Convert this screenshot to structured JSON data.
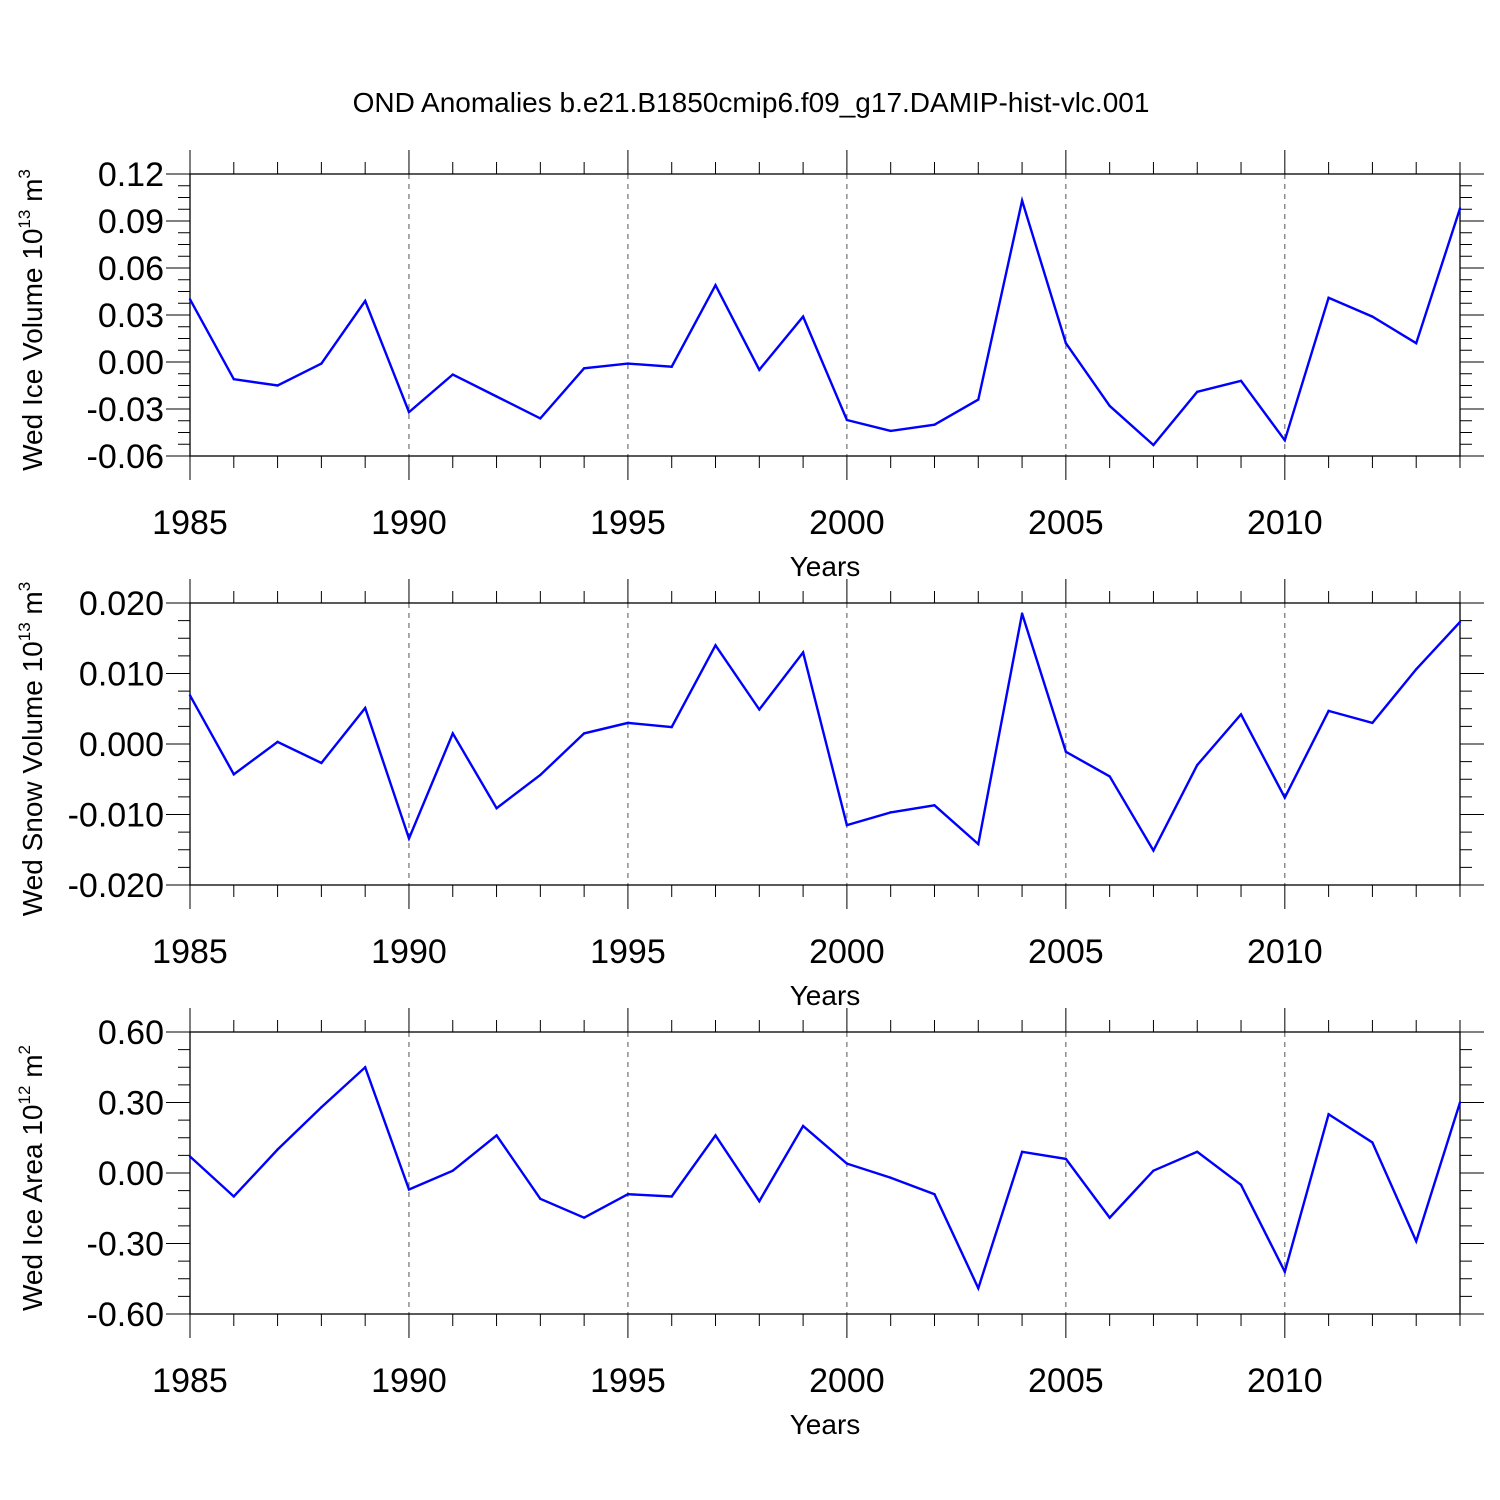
{
  "chart_data": {
    "type": "line",
    "title": "OND Anomalies b.e21.B1850cmip6.f09_g17.DAMIP-hist-vlc.001",
    "x": [
      1985,
      1986,
      1987,
      1988,
      1989,
      1990,
      1991,
      1992,
      1993,
      1994,
      1995,
      1996,
      1997,
      1998,
      1999,
      2000,
      2001,
      2002,
      2003,
      2004,
      2005,
      2006,
      2007,
      2008,
      2009,
      2010,
      2011,
      2012,
      2013,
      2014
    ],
    "xlim": [
      1985,
      2014
    ],
    "xticks": [
      1985,
      1990,
      1995,
      2000,
      2005,
      2010
    ],
    "xtick_labels": [
      "1985",
      "1990",
      "1995",
      "2000",
      "2005",
      "2010"
    ],
    "line_color": "#0000ff",
    "panels": [
      {
        "name": "ice-volume",
        "xlabel": "Years",
        "ylabel_main": "Wed Ice Volume 10",
        "ylabel_exp": "13",
        "ylabel_unit": " m",
        "ylabel_unit_exp": "3",
        "ylim": [
          -0.06,
          0.12
        ],
        "yticks": [
          0.12,
          0.09,
          0.06,
          0.03,
          0.0,
          -0.03,
          -0.06
        ],
        "ytick_labels": [
          "0.12",
          "0.09",
          "0.06",
          "0.03",
          "0.00",
          "-0.03",
          "-0.06"
        ],
        "values": [
          0.04,
          -0.011,
          -0.015,
          -0.001,
          0.039,
          -0.032,
          -0.008,
          -0.022,
          -0.036,
          -0.004,
          -0.001,
          -0.003,
          0.049,
          -0.005,
          0.029,
          -0.037,
          -0.044,
          -0.04,
          -0.024,
          0.103,
          0.012,
          -0.028,
          -0.053,
          -0.019,
          -0.012,
          -0.05,
          0.041,
          0.029,
          0.012,
          0.098
        ]
      },
      {
        "name": "snow-volume",
        "xlabel": "Years",
        "ylabel_main": "Wed Snow Volume 10",
        "ylabel_exp": "13",
        "ylabel_unit": " m",
        "ylabel_unit_exp": "3",
        "ylim": [
          -0.02,
          0.02
        ],
        "yticks": [
          0.02,
          0.01,
          0.0,
          -0.01,
          -0.02
        ],
        "ytick_labels": [
          "0.020",
          "0.010",
          "0.000",
          "-0.010",
          "-0.020"
        ],
        "values": [
          0.0069,
          -0.0043,
          0.0003,
          -0.0027,
          0.0051,
          -0.0134,
          0.0015,
          -0.0091,
          -0.0044,
          0.0015,
          0.003,
          0.0024,
          0.014,
          0.0049,
          0.013,
          -0.0115,
          -0.0097,
          -0.0087,
          -0.0142,
          0.0185,
          -0.0011,
          -0.0046,
          -0.0151,
          -0.003,
          0.0042,
          -0.0076,
          0.0047,
          0.003,
          0.0106,
          0.0173
        ]
      },
      {
        "name": "ice-area",
        "xlabel": "Years",
        "ylabel_main": "Wed Ice Area 10",
        "ylabel_exp": "12",
        "ylabel_unit": " m",
        "ylabel_unit_exp": "2",
        "ylim": [
          -0.6,
          0.6
        ],
        "yticks": [
          0.6,
          0.3,
          0.0,
          -0.3,
          -0.6
        ],
        "ytick_labels": [
          "0.60",
          "0.30",
          "0.00",
          "-0.30",
          "-0.60"
        ],
        "values": [
          0.07,
          -0.1,
          0.1,
          0.28,
          0.45,
          -0.07,
          0.01,
          0.16,
          -0.11,
          -0.19,
          -0.09,
          -0.1,
          0.16,
          -0.12,
          0.2,
          0.04,
          -0.02,
          -0.09,
          -0.49,
          0.09,
          0.06,
          -0.19,
          0.01,
          0.09,
          -0.05,
          -0.42,
          0.25,
          0.13,
          -0.29,
          0.3
        ]
      }
    ]
  }
}
